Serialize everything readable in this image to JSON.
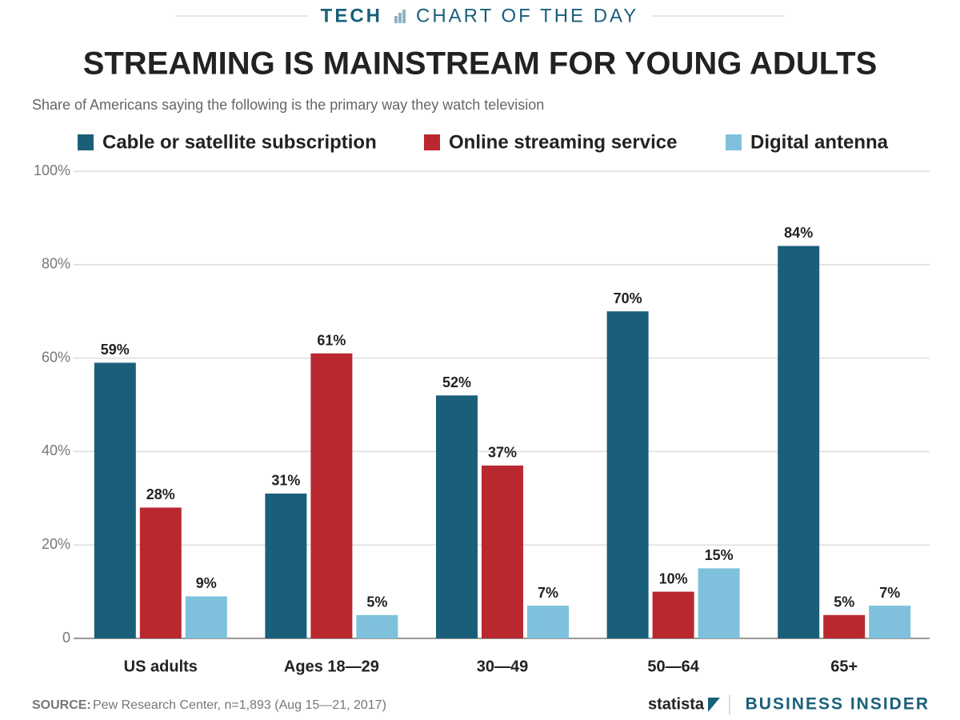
{
  "header": {
    "section": "TECH",
    "label": "CHART OF THE DAY"
  },
  "chart_data": {
    "type": "bar",
    "title": "STREAMING IS MAINSTREAM FOR YOUNG ADULTS",
    "subtitle": "Share of Americans saying the following is the primary way they watch television",
    "categories": [
      "US adults",
      "Ages 18—29",
      "30—49",
      "50—64",
      "65+"
    ],
    "series": [
      {
        "name": "Cable or satellite subscription",
        "color": "#1a5f7a",
        "values": [
          59,
          31,
          52,
          70,
          84
        ],
        "value_labels": [
          "59%",
          "31%",
          "52%",
          "70%",
          "84%"
        ]
      },
      {
        "name": "Online streaming service",
        "color": "#b8282e",
        "values": [
          28,
          61,
          37,
          10,
          5
        ],
        "value_labels": [
          "28%",
          "61%",
          "37%",
          "10%",
          "5%"
        ]
      },
      {
        "name": "Digital antenna",
        "color": "#7fc1dc",
        "values": [
          9,
          5,
          7,
          15,
          7
        ],
        "value_labels": [
          "9%",
          "5%",
          "7%",
          "15%",
          "7%"
        ]
      }
    ],
    "ylim": [
      0,
      100
    ],
    "yticks": [
      0,
      {
        "value": 20,
        "label": "20%"
      },
      {
        "value": 40,
        "label": "40%"
      },
      {
        "value": 60,
        "label": "60%"
      },
      {
        "value": 80,
        "label": "80%"
      },
      {
        "value": 100,
        "label": "100%"
      }
    ],
    "grid": true,
    "legend": "top"
  },
  "footer": {
    "source_label": "SOURCE:",
    "source": "Pew Research Center, n=1,893 (Aug 15—21, 2017)",
    "brand1": "statista",
    "brand2": "BUSINESS INSIDER"
  }
}
